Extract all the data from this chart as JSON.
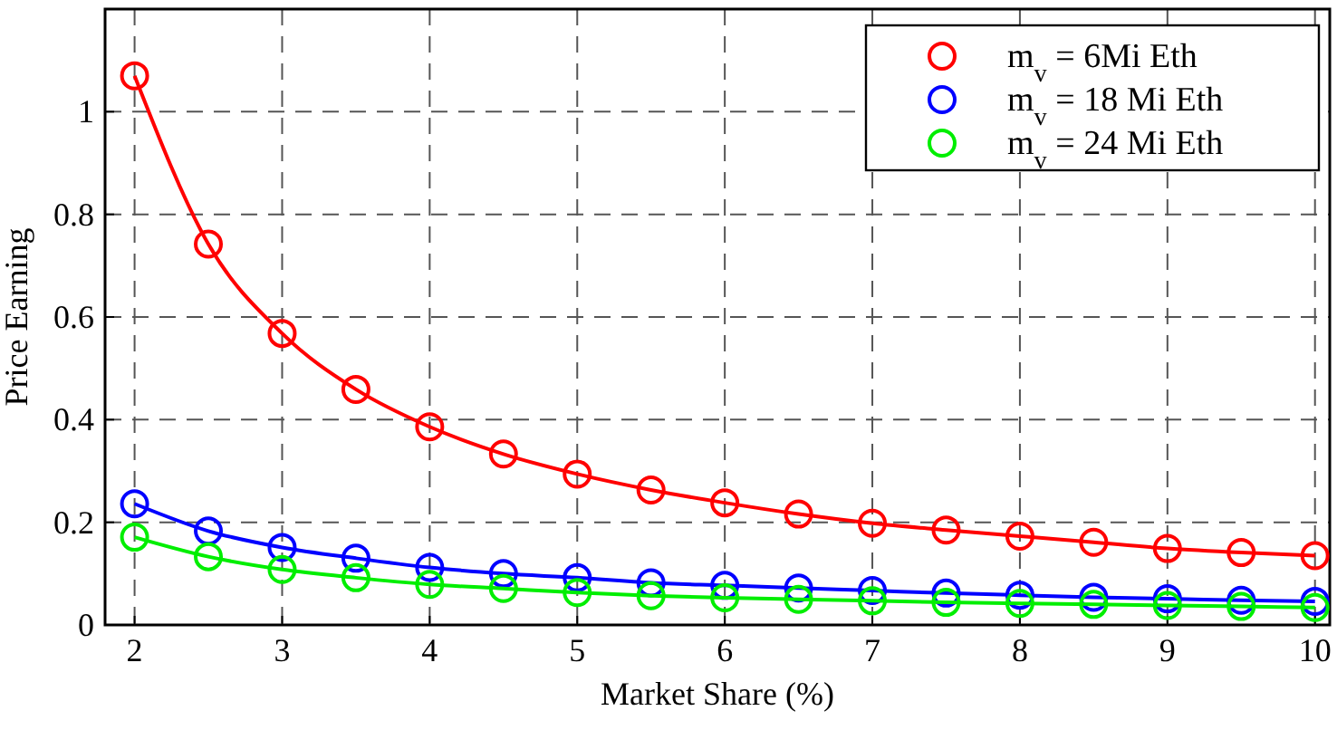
{
  "chart_data": {
    "type": "line",
    "xlabel": "Market Share (%)",
    "ylabel": "Price Earning",
    "x": [
      2,
      2.5,
      3,
      3.5,
      4,
      4.5,
      5,
      5.5,
      6,
      6.5,
      7,
      7.5,
      8,
      8.5,
      9,
      9.5,
      10
    ],
    "series": [
      {
        "name": "m$_{v}$ = 6Mi Eth",
        "color": "#ff0000",
        "values": [
          1.07,
          0.742,
          0.568,
          0.459,
          0.386,
          0.333,
          0.294,
          0.263,
          0.238,
          0.216,
          0.198,
          0.185,
          0.173,
          0.161,
          0.149,
          0.141,
          0.135
        ]
      },
      {
        "name": "m$_{v}$ = 18 Mi Eth",
        "color": "#0000ff",
        "values": [
          0.236,
          0.183,
          0.151,
          0.13,
          0.112,
          0.1,
          0.092,
          0.082,
          0.077,
          0.072,
          0.067,
          0.062,
          0.058,
          0.054,
          0.051,
          0.048,
          0.046
        ]
      },
      {
        "name": "m$_{v}$ = 24 Mi Eth",
        "color": "#00ee00",
        "values": [
          0.171,
          0.133,
          0.108,
          0.092,
          0.079,
          0.071,
          0.063,
          0.057,
          0.053,
          0.05,
          0.047,
          0.044,
          0.042,
          0.04,
          0.038,
          0.036,
          0.034
        ]
      }
    ],
    "xlim": [
      1.8,
      10.1
    ],
    "xticks": [
      2,
      3,
      4,
      5,
      6,
      7,
      8,
      9,
      10
    ],
    "ylim": [
      0,
      1.2
    ],
    "yticks": [
      0,
      0.2,
      0.4,
      0.6,
      0.8,
      1
    ],
    "grid": true,
    "legend": "top right",
    "marker": "circle",
    "line_style": "solid"
  }
}
